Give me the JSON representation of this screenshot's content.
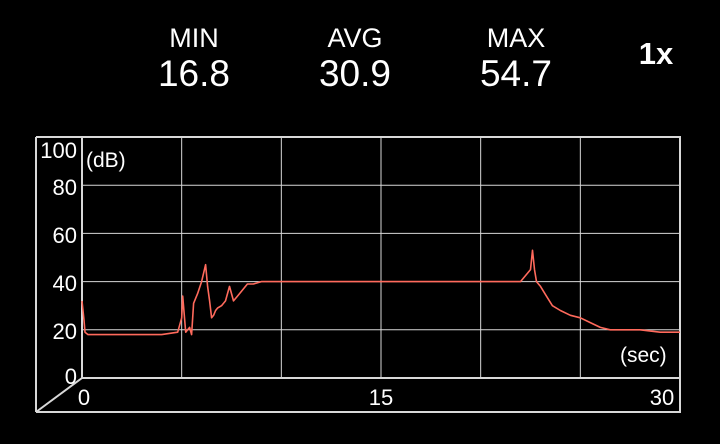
{
  "stats": {
    "min_label": "MIN",
    "min_value": "16.8",
    "avg_label": "AVG",
    "avg_value": "30.9",
    "max_label": "MAX",
    "max_value": "54.7"
  },
  "speed": "1x",
  "colors": {
    "background": "#000000",
    "grid": "#d8d8d8",
    "trace": "#ff6a5c",
    "text": "#ffffff"
  },
  "chart_data": {
    "type": "line",
    "title": "",
    "xlabel": "(sec)",
    "ylabel": "(dB)",
    "xlim": [
      0,
      30
    ],
    "ylim": [
      0,
      100
    ],
    "x_ticks": [
      "0",
      "15",
      "30"
    ],
    "y_ticks": [
      "0",
      "20",
      "40",
      "60",
      "80",
      "100"
    ],
    "grid": true,
    "series": [
      {
        "x": [
          0,
          0.1,
          0.15,
          0.3,
          0.5,
          1,
          2,
          3,
          4,
          4.8,
          5,
          5.05,
          5.2,
          5.4,
          5.5,
          5.6,
          5.8,
          6,
          6.2,
          6.3,
          6.4,
          6.5,
          6.6,
          6.7,
          6.8,
          7,
          7.2,
          7.4,
          7.6,
          7.8,
          8,
          8.3,
          8.6,
          9,
          10,
          11,
          12,
          13,
          14,
          15,
          16,
          17,
          18,
          19,
          20,
          21,
          22,
          22.5,
          22.6,
          22.7,
          22.8,
          23,
          23.3,
          23.6,
          24,
          24.5,
          25,
          25.5,
          26,
          26.5,
          27,
          28,
          29,
          30
        ],
        "y": [
          32,
          24,
          19,
          18,
          18,
          18,
          18,
          18,
          18,
          19,
          25,
          34,
          19,
          21,
          18,
          31,
          35,
          40,
          47,
          38,
          32,
          25,
          26,
          28,
          29,
          30,
          32,
          38,
          32,
          34,
          36,
          39,
          39,
          40,
          40,
          40,
          40,
          40,
          40,
          40,
          40,
          40,
          40,
          40,
          40,
          40,
          40,
          45,
          53,
          45,
          40,
          38,
          34,
          30,
          28,
          26,
          25,
          23,
          21,
          20,
          20,
          20,
          19,
          19
        ]
      }
    ]
  }
}
